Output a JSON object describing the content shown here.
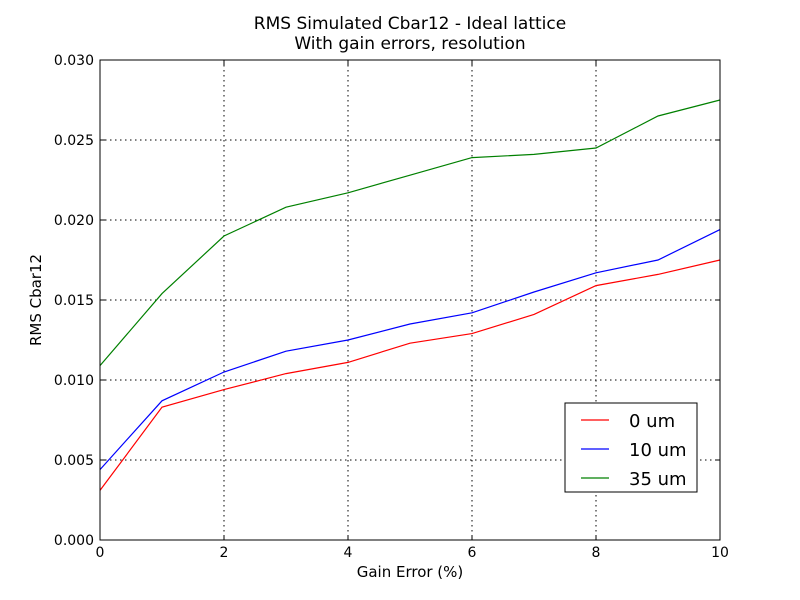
{
  "chart_data": {
    "type": "line",
    "title": "RMS Simulated Cbar12 - Ideal lattice",
    "subtitle": "With gain errors, resolution",
    "xlabel": "Gain Error (%)",
    "ylabel": "RMS Cbar12",
    "xlim": [
      0,
      10
    ],
    "ylim": [
      0,
      0.03
    ],
    "x_ticks": [
      0,
      2,
      4,
      6,
      8,
      10
    ],
    "x_tick_labels": [
      "0",
      "2",
      "4",
      "6",
      "8",
      "10"
    ],
    "y_ticks": [
      0,
      0.005,
      0.01,
      0.015,
      0.02,
      0.025,
      0.03
    ],
    "y_tick_labels": [
      "0.000",
      "0.005",
      "0.010",
      "0.015",
      "0.020",
      "0.025",
      "0.030"
    ],
    "grid": true,
    "legend_position": "lower-right",
    "x": [
      0,
      1,
      2,
      3,
      4,
      5,
      6,
      7,
      8,
      9,
      10
    ],
    "series": [
      {
        "name": "0 um",
        "color": "#ff0000",
        "values": [
          0.0031,
          0.0083,
          0.0094,
          0.0104,
          0.0111,
          0.0123,
          0.0129,
          0.0141,
          0.0159,
          0.0166,
          0.0175
        ]
      },
      {
        "name": "10 um",
        "color": "#0000ff",
        "values": [
          0.0044,
          0.0087,
          0.0105,
          0.0118,
          0.0125,
          0.0135,
          0.0142,
          0.0155,
          0.0167,
          0.0175,
          0.0194
        ]
      },
      {
        "name": "35 um",
        "color": "#008000",
        "values": [
          0.0109,
          0.0154,
          0.019,
          0.0208,
          0.0217,
          0.0228,
          0.0239,
          0.0241,
          0.0245,
          0.0265,
          0.0275
        ]
      }
    ]
  }
}
